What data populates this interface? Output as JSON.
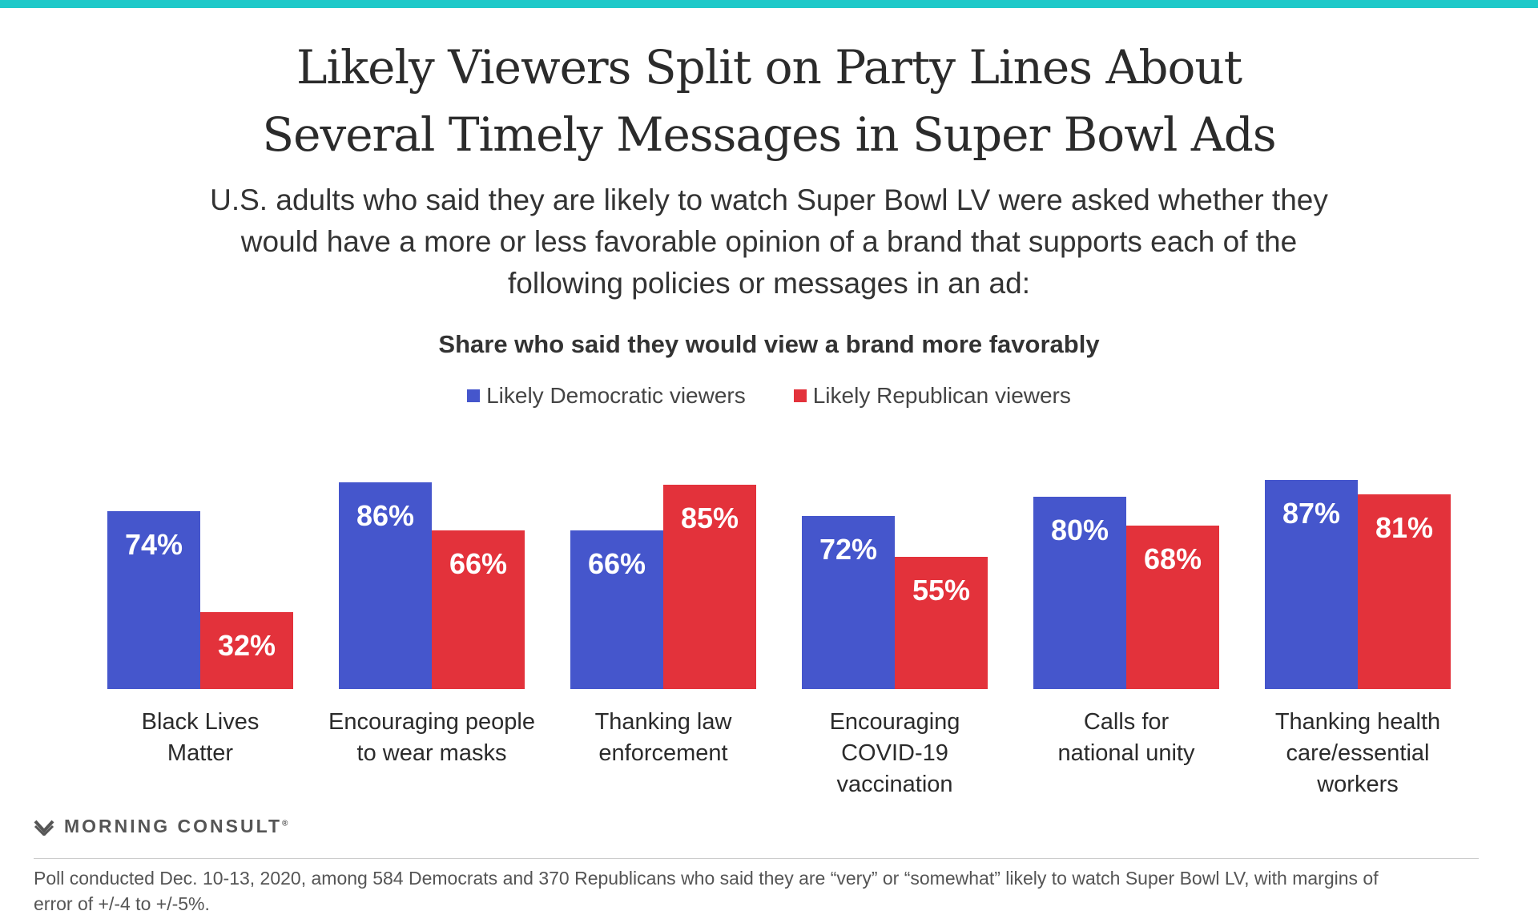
{
  "colors": {
    "accent_bar": "#1ec9c9",
    "democratic": "#4556cc",
    "republican": "#e3323b",
    "bar_label": "#ffffff",
    "category_text": "#2b2b2b"
  },
  "title_lines": [
    "Likely Viewers Split on Party Lines About",
    "Several Timely Messages in Super Bowl Ads"
  ],
  "subtitle": "U.S. adults who said they are likely to watch Super Bowl LV were asked whether they would have a more or less favorable opinion of a brand that supports each of the following policies or messages in an ad:",
  "chart_data": {
    "type": "bar",
    "title": "Share who said they would view a brand more favorably",
    "xlabel": "",
    "ylabel": "",
    "ylim": [
      0,
      100
    ],
    "grid": false,
    "legend_position": "top-center",
    "categories": [
      "Black Lives Matter",
      "Encouraging people to wear masks",
      "Thanking law enforcement",
      "Encouraging COVID-19 vaccination",
      "Calls for national unity",
      "Thanking health care/essential workers"
    ],
    "category_label_lines": [
      [
        "Black Lives",
        "Matter"
      ],
      [
        "Encouraging people",
        "to wear masks"
      ],
      [
        "Thanking law",
        "enforcement"
      ],
      [
        "Encouraging",
        "COVID-19",
        "vaccination"
      ],
      [
        "Calls for",
        "national unity"
      ],
      [
        "Thanking health",
        "care/essential",
        "workers"
      ]
    ],
    "series": [
      {
        "name": "Likely Democratic viewers",
        "values": [
          74,
          86,
          66,
          72,
          80,
          87
        ]
      },
      {
        "name": "Likely Republican viewers",
        "values": [
          32,
          66,
          85,
          55,
          68,
          81
        ]
      }
    ],
    "value_suffix": "%"
  },
  "brand": {
    "name": "MORNING CONSULT",
    "reg": "®"
  },
  "footnote": "Poll conducted Dec. 10-13, 2020, among 584 Democrats and 370 Republicans who said they are “very” or “somewhat” likely to watch Super Bowl LV, with margins of error of +/-4 to +/-5%."
}
